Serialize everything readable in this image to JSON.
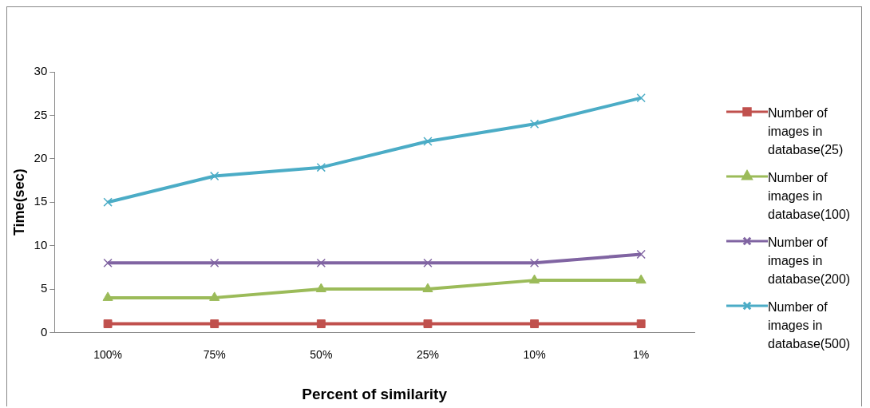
{
  "chart_data": {
    "type": "line",
    "xlabel": "Percent of similarity",
    "ylabel": "Time(sec)",
    "categories": [
      "100%",
      "75%",
      "50%",
      "25%",
      "10%",
      "1%"
    ],
    "ylim": [
      0,
      30
    ],
    "yticks": [
      0,
      5,
      10,
      15,
      20,
      25,
      30
    ],
    "grid": false,
    "legend": "right",
    "series": [
      {
        "name": "Number of images in database(25)",
        "color": "#c0504d",
        "marker": "square",
        "values": [
          1,
          1,
          1,
          1,
          1,
          1
        ]
      },
      {
        "name": "Number of images in database(100)",
        "color": "#9bbb59",
        "marker": "triangle",
        "values": [
          4,
          4,
          5,
          5,
          6,
          6
        ]
      },
      {
        "name": "Number of images in database(200)",
        "color": "#8064a2",
        "marker": "cross",
        "values": [
          8,
          8,
          8,
          8,
          8,
          9
        ]
      },
      {
        "name": "Number of images in database(500)",
        "color": "#4bacc6",
        "marker": "cross",
        "values": [
          15,
          18,
          19,
          22,
          24,
          27
        ]
      }
    ]
  }
}
